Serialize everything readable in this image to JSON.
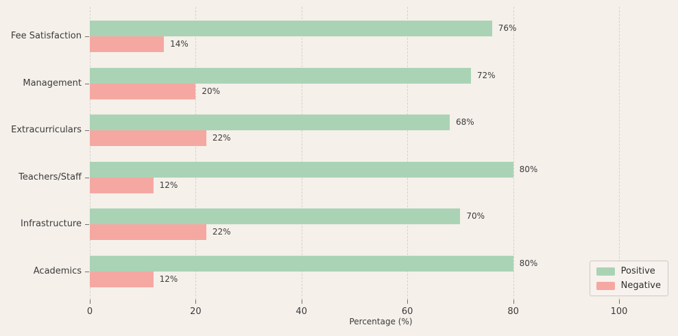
{
  "chart_data": {
    "type": "bar",
    "orientation": "horizontal",
    "title": "",
    "xlabel": "Percentage (%)",
    "ylabel": "",
    "categories": [
      "Fee Satisfaction",
      "Management",
      "Extracurriculars",
      "Teachers/Staff",
      "Infrastructure",
      "Academics"
    ],
    "series": [
      {
        "name": "Positive",
        "color": "#aad3b5",
        "values": [
          76,
          72,
          68,
          80,
          70,
          80
        ]
      },
      {
        "name": "Negative",
        "color": "#f5a8a2",
        "values": [
          14,
          20,
          22,
          12,
          22,
          12
        ]
      }
    ],
    "value_suffix": "%",
    "x_ticks": [
      0,
      20,
      40,
      60,
      80,
      100
    ],
    "xlim": [
      0,
      110
    ],
    "grid": "dashed-vertical",
    "legend_position": "lower right",
    "background_color": "#f5f0ea",
    "gridline_color": "#d6d0c8",
    "text_color": "#3a3a3a"
  },
  "legend": {
    "items": [
      {
        "label": "Positive"
      },
      {
        "label": "Negative"
      }
    ]
  }
}
